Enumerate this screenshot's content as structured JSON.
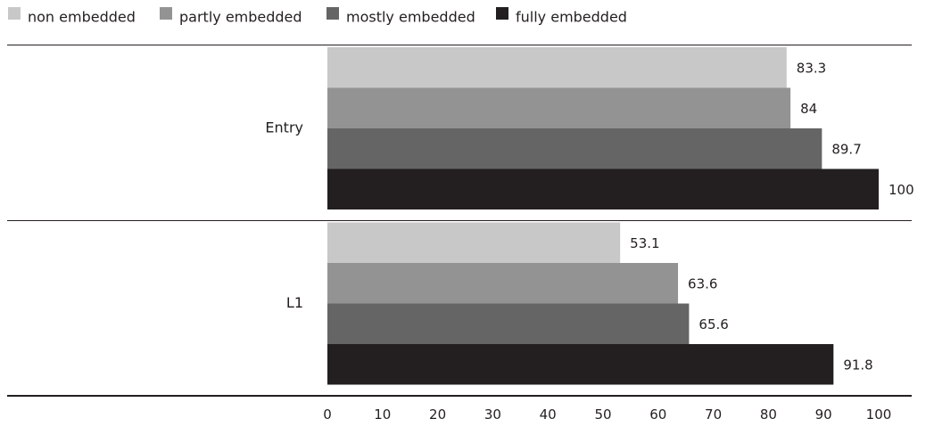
{
  "chart_data": {
    "type": "bar",
    "orientation": "horizontal",
    "title": "",
    "xlabel": "",
    "ylabel": "",
    "categories": [
      "Entry",
      "L1"
    ],
    "series": [
      {
        "name": "non embedded",
        "color": "#c8c8c8",
        "values": [
          83.3,
          53.1
        ],
        "labels": [
          "83.3",
          "53.1"
        ]
      },
      {
        "name": "partly embedded",
        "color": "#939393",
        "values": [
          84,
          63.6
        ],
        "labels": [
          "84",
          "63.6"
        ]
      },
      {
        "name": "mostly embedded",
        "color": "#656565",
        "values": [
          89.7,
          65.6
        ],
        "labels": [
          "89.7",
          "65.6"
        ]
      },
      {
        "name": "fully embedded",
        "color": "#231f20",
        "values": [
          100,
          91.8
        ],
        "labels": [
          "100",
          "91.8"
        ]
      }
    ],
    "xlim": [
      0,
      100
    ],
    "xticks": [
      "0",
      "10",
      "20",
      "30",
      "40",
      "50",
      "60",
      "70",
      "80",
      "90",
      "100"
    ],
    "legend_position": "top-left",
    "grid": false
  }
}
